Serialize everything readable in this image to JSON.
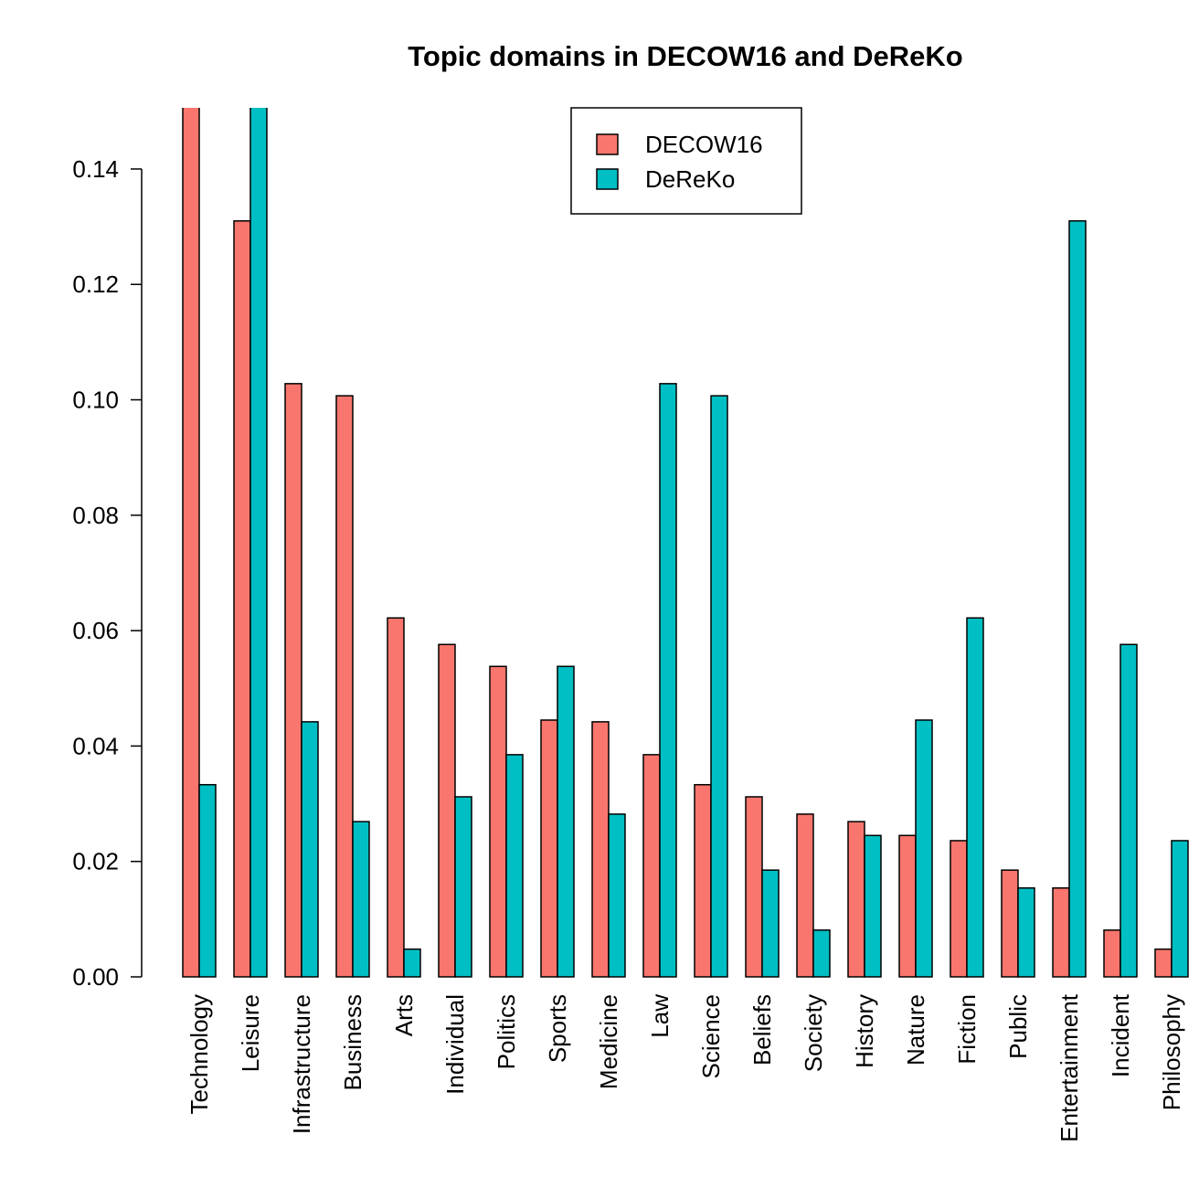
{
  "chart_data": {
    "type": "bar",
    "title": "Topic domains in DECOW16 and DeReKo",
    "categories": [
      "Technology",
      "Leisure",
      "Infrastructure",
      "Business",
      "Arts",
      "Individual",
      "Politics",
      "Sports",
      "Medicine",
      "Law",
      "Science",
      "Beliefs",
      "Society",
      "History",
      "Nature",
      "Fiction",
      "Public",
      "Entertainment",
      "Incident",
      "Philosophy"
    ],
    "series": [
      {
        "name": "DECOW16",
        "color": "#F8766D",
        "values": [
          0.155,
          0.131,
          0.1028,
          0.1007,
          0.0622,
          0.0576,
          0.0538,
          0.0445,
          0.0442,
          0.0385,
          0.0333,
          0.0312,
          0.0282,
          0.0269,
          0.0245,
          0.0236,
          0.0185,
          0.0154,
          0.0081,
          0.0048
        ]
      },
      {
        "name": "DeReKo",
        "color": "#00BFC4",
        "values": [
          0.0333,
          0.155,
          0.0442,
          0.0269,
          0.0048,
          0.0312,
          0.0385,
          0.0538,
          0.0282,
          0.1028,
          0.1007,
          0.0185,
          0.0081,
          0.0245,
          0.0445,
          0.0622,
          0.0154,
          0.131,
          0.0576,
          0.0236
        ]
      }
    ],
    "ylim": [
      0,
      0.1506
    ],
    "yticks": [
      {
        "value": 0,
        "label": "0.00"
      },
      0.02,
      0.04,
      0.06,
      0.08,
      {
        "value": 0.1,
        "label": "0.10"
      },
      0.12,
      0.14
    ],
    "legend": "top-center"
  }
}
